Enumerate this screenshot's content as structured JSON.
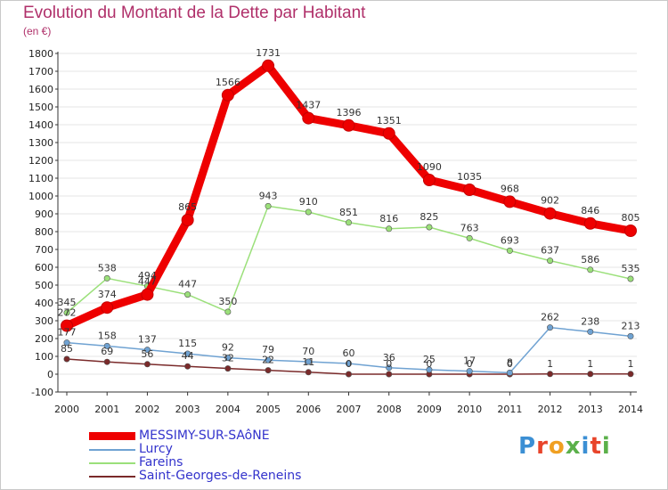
{
  "title": "Evolution du Montant de la Dette par Habitant",
  "subtitle": "(en €)",
  "logo": {
    "text": "Proxiti",
    "letter_colors": [
      "#3b8fd4",
      "#e8442a",
      "#f0a022",
      "#5bb04a",
      "#3b8fd4",
      "#e8442a",
      "#5bb04a"
    ]
  },
  "chart_data": {
    "type": "line",
    "title": "Evolution du Montant de la Dette par Habitant",
    "subtitle": "(en €)",
    "ylim": [
      -100,
      1800
    ],
    "yticks": [
      -100,
      0,
      100,
      200,
      300,
      400,
      500,
      600,
      700,
      800,
      900,
      1000,
      1100,
      1200,
      1300,
      1400,
      1500,
      1600,
      1700,
      1800
    ],
    "categories": [
      "2000",
      "2001",
      "2002",
      "2003",
      "2004",
      "2005",
      "2006",
      "2007",
      "2008",
      "2009",
      "2010",
      "2011",
      "2012",
      "2013",
      "2014"
    ],
    "grid": true,
    "legend_position": "bottom-left",
    "series": [
      {
        "name": "MESSIMY-SUR-SAôNE",
        "color": "#ee0000",
        "legend_color": "#3333cc",
        "values": [
          272,
          374,
          447,
          865,
          1566,
          1731,
          1437,
          1396,
          1351,
          1090,
          1035,
          968,
          902,
          846,
          805
        ],
        "labels": [
          "272",
          "374",
          "447",
          "865",
          "1566",
          "1731",
          "1437",
          "1396",
          "1351",
          "1090",
          "1035",
          "968",
          "902",
          "846",
          "805"
        ]
      },
      {
        "name": "Lurcy",
        "color": "#6fa2d2",
        "legend_color": "#3333cc",
        "values": [
          177,
          158,
          137,
          115,
          92,
          79,
          70,
          60,
          36,
          25,
          17,
          8,
          262,
          238,
          213
        ],
        "labels": [
          "177",
          "158",
          "137",
          "115",
          "92",
          "79",
          "70",
          "60",
          "36",
          "25",
          "17",
          "8",
          "262",
          "238",
          "213"
        ]
      },
      {
        "name": "Fareins",
        "color": "#9be07a",
        "legend_color": "#3333cc",
        "values": [
          345,
          538,
          494,
          447,
          350,
          943,
          910,
          851,
          816,
          825,
          763,
          693,
          637,
          586,
          535
        ],
        "labels": [
          "345",
          "538",
          "494",
          "447",
          "350",
          "943",
          "910",
          "851",
          "816",
          "825",
          "763",
          "693",
          "637",
          "586",
          "535"
        ]
      },
      {
        "name": "Saint-Georges-de-Reneins",
        "color": "#7a2a2a",
        "legend_color": "#3333cc",
        "values": [
          85,
          69,
          56,
          44,
          32,
          22,
          11,
          0,
          0,
          0,
          0,
          0,
          1,
          1,
          1
        ],
        "labels": [
          "85",
          "69",
          "56",
          "44",
          "32",
          "22",
          "11",
          "0",
          "0",
          "0",
          "0",
          "0",
          "1",
          "1",
          "1"
        ]
      }
    ]
  }
}
